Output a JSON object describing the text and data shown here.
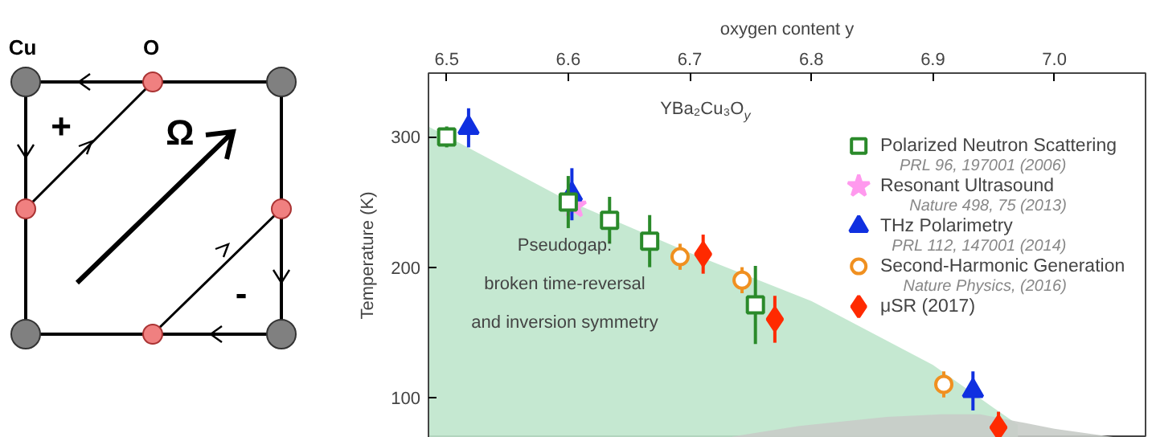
{
  "chart_data": [
    {
      "type": "other",
      "annotations": [
        "Cu",
        "O",
        "+",
        "Ω",
        "-"
      ]
    },
    {
      "type": "scatter",
      "xlabel": "oxygen content y",
      "ylabel": "Temperature (K)",
      "xlim": [
        6.485,
        7.075
      ],
      "xticks": [
        6.5,
        6.6,
        6.7,
        6.8,
        6.9,
        {
          "value": 7.0,
          "label": "7.0"
        }
      ],
      "ylim": [
        69,
        349
      ],
      "yticks": [
        100,
        200,
        300
      ],
      "grid": false,
      "legend": "right",
      "annotations": [
        "PRL 96, 197001 (2006)",
        "Nature 498, 75 (2013)",
        "PRL 112, 147001 (2014)",
        "Nature Physics, (2016)",
        "Pseudogap:\nbroken time-reversal\nand inversion symmetry",
        "YBa₂Cu₃O$_{y}$"
      ],
      "series": [
        {
          "type": "area",
          "color": "#bfe5cc",
          "x": [
            6.485,
            6.6,
            6.7,
            6.8,
            6.9,
            6.95,
            6.97
          ],
          "values": [
            308,
            251,
            211,
            174,
            125,
            92,
            79
          ]
        },
        {
          "type": "area",
          "color": "#c8ccc8",
          "x": [
            6.735,
            6.789,
            6.862,
            6.907,
            6.939,
            7.0,
            7.053
          ],
          "values": [
            70,
            78,
            85,
            87,
            87,
            76,
            69
          ]
        },
        {
          "name": "Polarized Neutron Scattering",
          "color": "#2a8a2a",
          "marker": "square",
          "x": [
            6.5,
            6.6,
            6.634,
            6.667,
            6.754
          ],
          "values": [
            300,
            250,
            236,
            220,
            171
          ],
          "errors": [
            8,
            20,
            18,
            20,
            30
          ]
        },
        {
          "name": "Resonant Ultrasound",
          "color": "#ff99ee",
          "marker": "star",
          "x": [
            6.605
          ],
          "values": [
            247
          ]
        },
        {
          "name": "THz Polarimetry",
          "color": "#1030e0",
          "marker": "triangle",
          "x": [
            6.518,
            6.603,
            6.933
          ],
          "values": [
            307,
            256,
            105
          ],
          "errors": [
            15,
            20,
            15
          ]
        },
        {
          "name": "Second-Harmonic Generation",
          "color": "#f09020",
          "marker": "circle",
          "x": [
            6.692,
            6.743,
            6.909
          ],
          "values": [
            208,
            190,
            110
          ],
          "errors": [
            10,
            10,
            10
          ]
        },
        {
          "name": "μSR (2017)",
          "color": "#ff2a00",
          "marker": "diamond",
          "x": [
            6.711,
            6.77,
            6.954
          ],
          "values": [
            210,
            160,
            77
          ],
          "errors": [
            15,
            18,
            12
          ]
        }
      ]
    }
  ]
}
